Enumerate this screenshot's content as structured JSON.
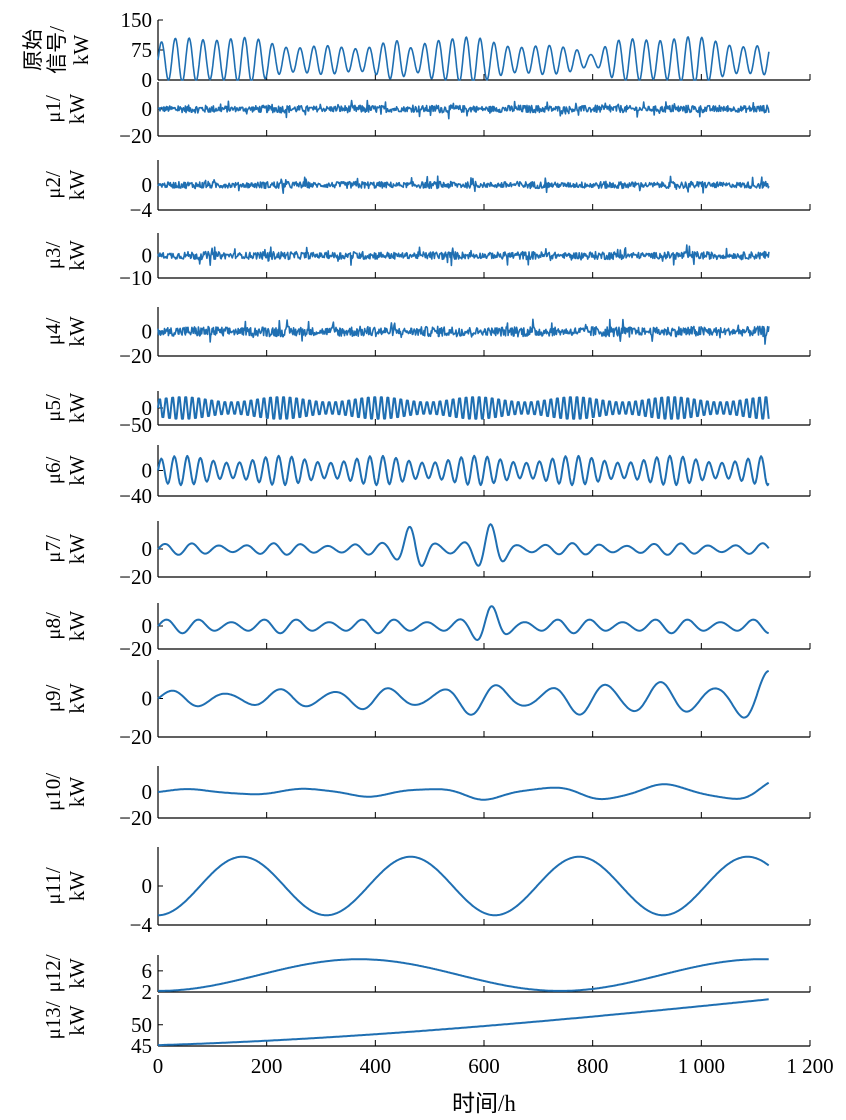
{
  "chart_data": {
    "type": "line",
    "xlabel": "时间/h",
    "xlim": [
      0,
      1200
    ],
    "xticks": [
      "0",
      "200",
      "400",
      "600",
      "800",
      "1 000",
      "1 200"
    ],
    "xtick_values": [
      0,
      200,
      400,
      600,
      800,
      1000,
      1200
    ],
    "x_range": [
      0,
      1125
    ],
    "color": "#1f6fb2",
    "panels": [
      {
        "name": "原始信号",
        "ylabel": [
          "原始",
          "信号/",
          "kW"
        ],
        "ylim": [
          0,
          150
        ],
        "yticks": [
          "150",
          "75",
          "0"
        ],
        "signal": {
          "kind": "raw",
          "offset": 50,
          "amplitude": 50,
          "period_h": 25.5
        }
      },
      {
        "name": "μ1",
        "ylabel": [
          "μ1/",
          "kW"
        ],
        "ylim": [
          -20,
          20
        ],
        "yticks": [
          "0",
          "−20"
        ],
        "signal": {
          "kind": "noise",
          "amplitude": 4
        }
      },
      {
        "name": "μ2",
        "ylabel": [
          "μ2/",
          "kW"
        ],
        "ylim": [
          -4,
          4
        ],
        "yticks": [
          "0",
          "−4"
        ],
        "signal": {
          "kind": "noise",
          "amplitude": 0.8
        }
      },
      {
        "name": "μ3",
        "ylabel": [
          "μ3/",
          "kW"
        ],
        "ylim": [
          -10,
          10
        ],
        "yticks": [
          "0",
          "−10"
        ],
        "signal": {
          "kind": "noise",
          "amplitude": 2.5
        }
      },
      {
        "name": "μ4",
        "ylabel": [
          "μ4/",
          "kW"
        ],
        "ylim": [
          -20,
          20
        ],
        "yticks": [
          "0",
          "−20"
        ],
        "signal": {
          "kind": "noise",
          "amplitude": 6
        }
      },
      {
        "name": "μ5",
        "ylabel": [
          "μ5/",
          "kW"
        ],
        "ylim": [
          -50,
          50
        ],
        "yticks": [
          "0",
          "−50"
        ],
        "signal": {
          "kind": "oscillation",
          "amplitude": 35,
          "period_h": 12
        }
      },
      {
        "name": "μ6",
        "ylabel": [
          "μ6/",
          "kW"
        ],
        "ylim": [
          -40,
          40
        ],
        "yticks": [
          "0",
          "−40"
        ],
        "signal": {
          "kind": "oscillation",
          "amplitude": 22,
          "period_h": 24
        }
      },
      {
        "name": "μ7",
        "ylabel": [
          "μ7/",
          "kW"
        ],
        "ylim": [
          -20,
          20
        ],
        "yticks": [
          "0",
          "−20"
        ],
        "signal": {
          "kind": "oscillation",
          "amplitude": 4,
          "period_h": 50,
          "bursts": [
            {
              "x": 470,
              "amp": 14
            },
            {
              "x": 610,
              "amp": 14
            }
          ]
        }
      },
      {
        "name": "μ8",
        "ylabel": [
          "μ8/",
          "kW"
        ],
        "ylim": [
          -20,
          20
        ],
        "yticks": [
          "0",
          "−20"
        ],
        "signal": {
          "kind": "oscillation",
          "amplitude": 6,
          "period_h": 60,
          "bursts": [
            {
              "x": 610,
              "amp": 12
            }
          ]
        }
      },
      {
        "name": "μ9",
        "ylabel": [
          "μ9/",
          "kW"
        ],
        "ylim": [
          -20,
          20
        ],
        "yticks": [
          "0",
          "−20"
        ],
        "signal": {
          "kind": "oscillation",
          "amplitude": 4,
          "period_h": 100,
          "growth": 10
        }
      },
      {
        "name": "μ10",
        "ylabel": [
          "μ10/",
          "kW"
        ],
        "ylim": [
          -20,
          20
        ],
        "yticks": [
          "0",
          "−20"
        ],
        "signal": {
          "kind": "oscillation",
          "amplitude": 2,
          "period_h": 220,
          "growth": 9
        }
      },
      {
        "name": "μ11",
        "ylabel": [
          "μ11/",
          "kW"
        ],
        "ylim": [
          -4,
          4
        ],
        "yticks": [
          "0",
          "−4"
        ],
        "signal": {
          "kind": "slow",
          "amplitude": 3,
          "period_h": 310
        }
      },
      {
        "name": "μ12",
        "ylabel": [
          "μ12/",
          "kW"
        ],
        "ylim": [
          2,
          9
        ],
        "yticks": [
          "6",
          "2"
        ],
        "signal": {
          "kind": "slow",
          "offset": 5.2,
          "amplitude": 3,
          "period_h": 740
        }
      },
      {
        "name": "μ13",
        "ylabel": [
          "μ13/",
          "kW"
        ],
        "ylim": [
          45,
          57
        ],
        "yticks": [
          "50",
          "45"
        ],
        "signal": {
          "kind": "trend",
          "start": 45.2,
          "end": 56
        }
      }
    ]
  }
}
